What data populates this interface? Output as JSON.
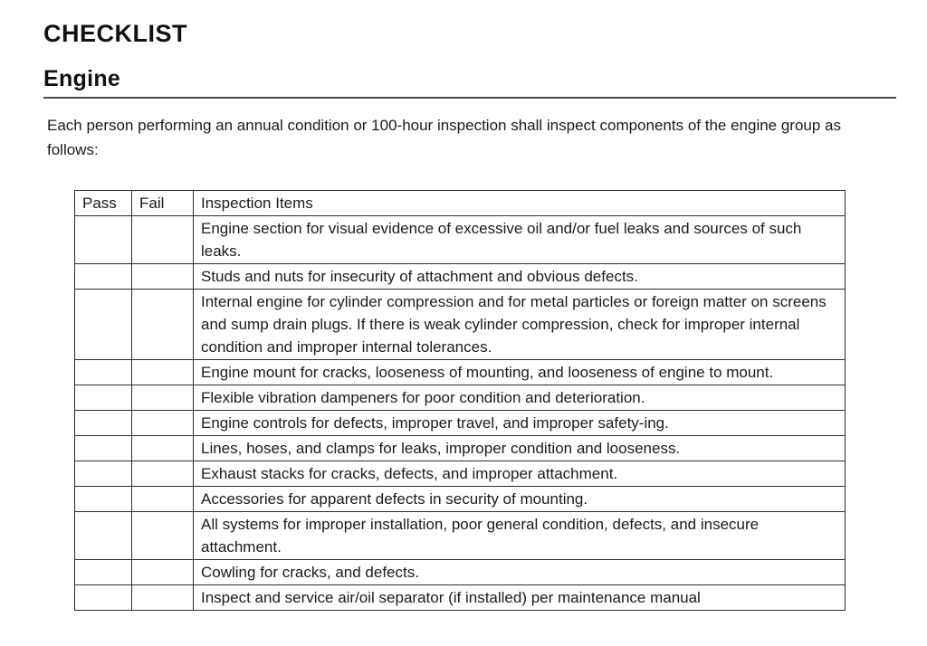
{
  "page": {
    "title": "CHECKLIST",
    "section_heading": "Engine",
    "intro": "Each person performing an annual condition or 100-hour inspection shall inspect components of the engine group as follows:"
  },
  "table": {
    "headers": {
      "pass": "Pass",
      "fail": "Fail",
      "items": "Inspection Items"
    },
    "rows": [
      {
        "pass": "",
        "fail": "",
        "item": "Engine section for visual evidence of excessive oil and/or fuel leaks and sources of such leaks."
      },
      {
        "pass": "",
        "fail": "",
        "item": "Studs and nuts for insecurity of attachment and obvious defects."
      },
      {
        "pass": "",
        "fail": "",
        "item": "Internal engine for cylinder compression and for metal particles or foreign matter on screens and sump drain plugs. If there is weak cylinder compression, check for improper internal condition and improper internal tolerances."
      },
      {
        "pass": "",
        "fail": "",
        "item": "Engine mount for cracks, looseness of mounting, and looseness of engine to mount."
      },
      {
        "pass": "",
        "fail": "",
        "item": "Flexible vibration dampeners for poor condition and deterioration."
      },
      {
        "pass": "",
        "fail": "",
        "item": "Engine controls for defects, improper travel, and improper safety-ing."
      },
      {
        "pass": "",
        "fail": "",
        "item": "Lines, hoses, and clamps for leaks, improper condition and looseness."
      },
      {
        "pass": "",
        "fail": "",
        "item": "Exhaust stacks for cracks, defects, and improper attachment."
      },
      {
        "pass": "",
        "fail": "",
        "item": "Accessories for apparent defects in security of mounting."
      },
      {
        "pass": "",
        "fail": "",
        "item": "All systems for improper installation, poor general condition, defects, and insecure attachment."
      },
      {
        "pass": "",
        "fail": "",
        "item": "Cowling for cracks, and defects."
      },
      {
        "pass": "",
        "fail": "",
        "item": "Inspect and service air/oil separator (if installed) per maintenance manual"
      }
    ]
  },
  "colors": {
    "background": "#ffffff",
    "text": "#1b1b1b",
    "table_border": "#2e2e2e",
    "heading_rule": "#4a4a4a"
  }
}
